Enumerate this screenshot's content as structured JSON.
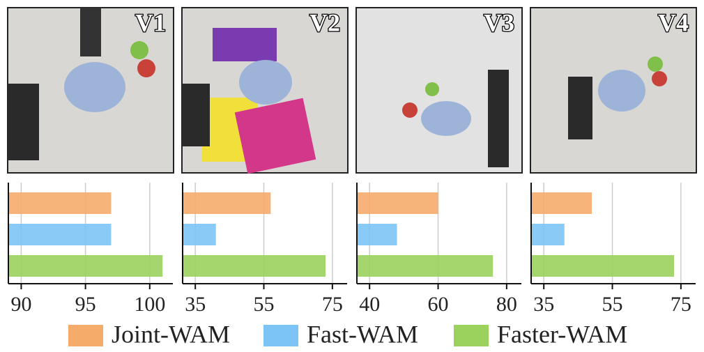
{
  "chart_data": [
    {
      "type": "bar",
      "orientation": "horizontal",
      "title": "V1",
      "series": [
        {
          "name": "Joint-WAM",
          "color": "#f5ac6b",
          "values": [
            97
          ]
        },
        {
          "name": "Fast-WAM",
          "color": "#7cc4f5",
          "values": [
            97
          ]
        },
        {
          "name": "Faster-WAM",
          "color": "#9bd15d",
          "values": [
            101
          ]
        }
      ],
      "xlim": [
        89,
        101.8
      ],
      "xticks": [
        90,
        95,
        100
      ],
      "grid": true
    },
    {
      "type": "bar",
      "orientation": "horizontal",
      "title": "V2",
      "series": [
        {
          "name": "Joint-WAM",
          "color": "#f5ac6b",
          "values": [
            57
          ]
        },
        {
          "name": "Fast-WAM",
          "color": "#7cc4f5",
          "values": [
            41
          ]
        },
        {
          "name": "Faster-WAM",
          "color": "#9bd15d",
          "values": [
            73
          ]
        }
      ],
      "xlim": [
        31.3,
        79.3
      ],
      "xticks": [
        35,
        55,
        75
      ],
      "grid": true
    },
    {
      "type": "bar",
      "orientation": "horizontal",
      "title": "V3",
      "series": [
        {
          "name": "Joint-WAM",
          "color": "#f5ac6b",
          "values": [
            60
          ]
        },
        {
          "name": "Fast-WAM",
          "color": "#7cc4f5",
          "values": [
            48
          ]
        },
        {
          "name": "Faster-WAM",
          "color": "#9bd15d",
          "values": [
            76
          ]
        }
      ],
      "xlim": [
        36.3,
        84.3
      ],
      "xticks": [
        40,
        60,
        80
      ],
      "grid": true
    },
    {
      "type": "bar",
      "orientation": "horizontal",
      "title": "V4",
      "series": [
        {
          "name": "Joint-WAM",
          "color": "#f5ac6b",
          "values": [
            49
          ]
        },
        {
          "name": "Fast-WAM",
          "color": "#7cc4f5",
          "values": [
            41
          ]
        },
        {
          "name": "Faster-WAM",
          "color": "#9bd15d",
          "values": [
            73
          ]
        }
      ],
      "xlim": [
        31.3,
        79.3
      ],
      "xticks": [
        35,
        55,
        75
      ],
      "grid": true
    }
  ]
}
